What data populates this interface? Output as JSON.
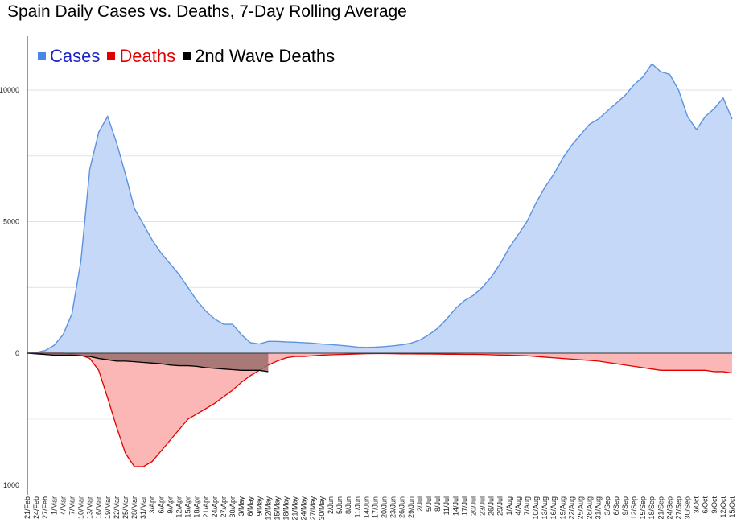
{
  "title": "Spain Daily Cases vs. Deaths, 7-Day Rolling Average",
  "colors": {
    "cases_line": "#5b93df",
    "cases_fill": "#c5d8f7",
    "deaths_line": "#e00000",
    "deaths_fill": "#fbb7b5",
    "wave2_line": "#000000",
    "wave2_fill": "#9a6f6d",
    "legend_cases_text": "#1a22c8",
    "legend_deaths_text": "#e00000",
    "legend_wave2_text": "#000000"
  },
  "legend": [
    {
      "label": "Cases",
      "color": "#4a86e8",
      "text_color": "#1a22c8"
    },
    {
      "label": "Deaths",
      "color": "#e00000",
      "text_color": "#e00000"
    },
    {
      "label": "2nd Wave Deaths",
      "color": "#000000",
      "text_color": "#000000"
    }
  ],
  "chart_data": {
    "type": "area",
    "title": "Spain Daily Cases vs. Deaths, 7-Day Rolling Average",
    "cases_axis": {
      "ticks": [
        "10000",
        "5000",
        "0"
      ],
      "range": [
        0,
        12000
      ]
    },
    "deaths_axis": {
      "ticks": [
        "0",
        "1000"
      ],
      "range": [
        0,
        1000
      ],
      "direction": "down"
    },
    "x_labels": [
      "21/Feb",
      "24/Feb",
      "27/Feb",
      "1/Mar",
      "4/Mar",
      "7/Mar",
      "10/Mar",
      "13/Mar",
      "16/Mar",
      "19/Mar",
      "22/Mar",
      "25/Mar",
      "28/Mar",
      "31/Mar",
      "3/Apr",
      "6/Apr",
      "9/Apr",
      "12/Apr",
      "15/Apr",
      "18/Apr",
      "21/Apr",
      "24/Apr",
      "27/Apr",
      "30/Apr",
      "3/May",
      "6/May",
      "9/May",
      "12/May",
      "15/May",
      "18/May",
      "21/May",
      "24/May",
      "27/May",
      "30/May",
      "2/Jun",
      "5/Jun",
      "8/Jun",
      "11/Jun",
      "14/Jun",
      "17/Jun",
      "20/Jun",
      "23/Jun",
      "26/Jun",
      "29/Jun",
      "2/Jul",
      "5/Jul",
      "8/Jul",
      "11/Jul",
      "14/Jul",
      "17/Jul",
      "20/Jul",
      "23/Jul",
      "26/Jul",
      "29/Jul",
      "1/Aug",
      "4/Aug",
      "7/Aug",
      "10/Aug",
      "13/Aug",
      "16/Aug",
      "19/Aug",
      "22/Aug",
      "25/Aug",
      "28/Aug",
      "31/Aug",
      "3/Sep",
      "6/Sep",
      "9/Sep",
      "12/Sep",
      "15/Sep",
      "18/Sep",
      "21/Sep",
      "24/Sep",
      "27/Sep",
      "30/Sep",
      "3/Oct",
      "6/Oct",
      "9/Oct",
      "12/Oct",
      "15/Oct"
    ],
    "series": [
      {
        "name": "Cases",
        "x": [
          "21/Feb",
          "24/Feb",
          "27/Feb",
          "1/Mar",
          "4/Mar",
          "7/Mar",
          "10/Mar",
          "13/Mar",
          "16/Mar",
          "19/Mar",
          "22/Mar",
          "25/Mar",
          "28/Mar",
          "31/Mar",
          "3/Apr",
          "6/Apr",
          "9/Apr",
          "12/Apr",
          "15/Apr",
          "18/Apr",
          "21/Apr",
          "24/Apr",
          "27/Apr",
          "30/Apr",
          "3/May",
          "6/May",
          "9/May",
          "12/May",
          "15/May",
          "18/May",
          "21/May",
          "24/May",
          "27/May",
          "30/May",
          "2/Jun",
          "5/Jun",
          "8/Jun",
          "11/Jun",
          "14/Jun",
          "17/Jun",
          "20/Jun",
          "23/Jun",
          "26/Jun",
          "29/Jun",
          "2/Jul",
          "5/Jul",
          "8/Jul",
          "11/Jul",
          "14/Jul",
          "17/Jul",
          "20/Jul",
          "23/Jul",
          "26/Jul",
          "29/Jul",
          "1/Aug",
          "4/Aug",
          "7/Aug",
          "10/Aug",
          "13/Aug",
          "16/Aug",
          "19/Aug",
          "22/Aug",
          "25/Aug",
          "28/Aug",
          "31/Aug",
          "3/Sep",
          "6/Sep",
          "9/Sep",
          "12/Sep",
          "15/Sep",
          "18/Sep",
          "21/Sep",
          "24/Sep",
          "27/Sep",
          "30/Sep",
          "3/Oct",
          "6/Oct",
          "9/Oct",
          "12/Oct",
          "15/Oct"
        ],
        "values": [
          0,
          30,
          100,
          300,
          700,
          1500,
          3500,
          7000,
          8400,
          9000,
          8000,
          6800,
          5500,
          4900,
          4300,
          3800,
          3400,
          3000,
          2500,
          2000,
          1600,
          1300,
          1100,
          1100,
          700,
          400,
          350,
          450,
          450,
          430,
          420,
          400,
          380,
          350,
          330,
          300,
          270,
          230,
          220,
          230,
          250,
          280,
          320,
          380,
          500,
          700,
          950,
          1300,
          1700,
          2000,
          2200,
          2500,
          2900,
          3400,
          4000,
          4500,
          5000,
          5700,
          6300,
          6800,
          7400,
          7900,
          8300,
          8700,
          8900,
          9200,
          9500,
          9800,
          10200,
          10500,
          11000,
          10700,
          10600,
          10000,
          9000,
          8500,
          9000,
          9300,
          9700,
          8900
        ]
      },
      {
        "name": "Deaths",
        "x": [
          "21/Feb",
          "24/Feb",
          "27/Feb",
          "1/Mar",
          "4/Mar",
          "7/Mar",
          "10/Mar",
          "13/Mar",
          "16/Mar",
          "19/Mar",
          "22/Mar",
          "25/Mar",
          "28/Mar",
          "31/Mar",
          "3/Apr",
          "6/Apr",
          "9/Apr",
          "12/Apr",
          "15/Apr",
          "18/Apr",
          "21/Apr",
          "24/Apr",
          "27/Apr",
          "30/Apr",
          "3/May",
          "6/May",
          "9/May",
          "12/May",
          "15/May",
          "18/May",
          "21/May",
          "24/May",
          "27/May",
          "30/May",
          "2/Jun",
          "5/Jun",
          "8/Jun",
          "11/Jun",
          "14/Jun",
          "17/Jun",
          "20/Jun",
          "23/Jun",
          "26/Jun",
          "29/Jun",
          "2/Jul",
          "5/Jul",
          "8/Jul",
          "11/Jul",
          "14/Jul",
          "17/Jul",
          "20/Jul",
          "23/Jul",
          "26/Jul",
          "29/Jul",
          "1/Aug",
          "4/Aug",
          "7/Aug",
          "10/Aug",
          "13/Aug",
          "16/Aug",
          "19/Aug",
          "22/Aug",
          "25/Aug",
          "28/Aug",
          "31/Aug",
          "3/Sep",
          "6/Sep",
          "9/Sep",
          "12/Sep",
          "15/Sep",
          "18/Sep",
          "21/Sep",
          "24/Sep",
          "27/Sep",
          "30/Sep",
          "3/Oct",
          "6/Oct",
          "9/Oct",
          "12/Oct",
          "15/Oct"
        ],
        "values": [
          0,
          0,
          0,
          0,
          0,
          5,
          15,
          40,
          130,
          340,
          560,
          760,
          860,
          860,
          820,
          740,
          660,
          580,
          500,
          460,
          420,
          380,
          330,
          280,
          220,
          170,
          130,
          90,
          60,
          35,
          25,
          25,
          20,
          15,
          12,
          10,
          8,
          6,
          4,
          3,
          3,
          4,
          5,
          5,
          6,
          6,
          7,
          8,
          8,
          9,
          9,
          10,
          12,
          14,
          15,
          18,
          20,
          25,
          30,
          35,
          40,
          45,
          50,
          55,
          60,
          70,
          80,
          90,
          100,
          110,
          120,
          130,
          130,
          130,
          130,
          130,
          130,
          140,
          140,
          150
        ]
      },
      {
        "name": "2nd Wave Deaths",
        "x": [
          "21/Feb",
          "24/Feb",
          "27/Feb",
          "1/Mar",
          "4/Mar",
          "7/Mar",
          "10/Mar",
          "13/Mar",
          "16/Mar",
          "19/Mar",
          "22/Mar",
          "25/Mar",
          "28/Mar",
          "31/Mar",
          "3/Apr",
          "6/Apr",
          "9/Apr",
          "12/Apr",
          "15/Apr",
          "18/Apr",
          "21/Apr",
          "24/Apr",
          "27/Apr",
          "30/Apr",
          "3/May",
          "6/May",
          "9/May",
          "12/May"
        ],
        "values": [
          0,
          5,
          10,
          15,
          15,
          15,
          20,
          25,
          40,
          50,
          60,
          60,
          65,
          70,
          75,
          80,
          90,
          95,
          95,
          100,
          110,
          115,
          120,
          125,
          130,
          130,
          130,
          140
        ]
      }
    ]
  }
}
